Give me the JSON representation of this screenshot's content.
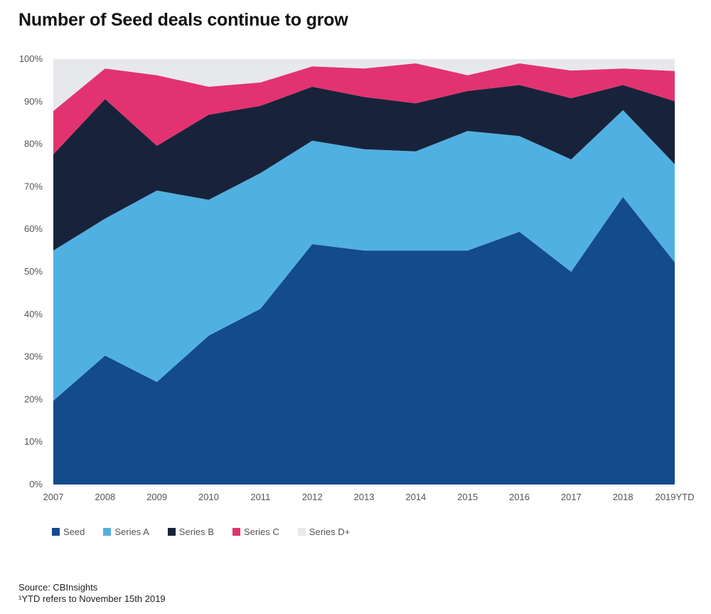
{
  "title": "Number of Seed deals continue to grow",
  "footnotes": {
    "source": "Source: CBInsights",
    "ytd_note": "¹YTD refers to November 15th 2019"
  },
  "chart_data": {
    "type": "area",
    "stacked": true,
    "normalized": true,
    "title": "Number of Seed deals continue to grow",
    "xlabel": "",
    "ylabel": "",
    "ylim": [
      0,
      100
    ],
    "yticks": [
      0,
      10,
      20,
      30,
      40,
      50,
      60,
      70,
      80,
      90,
      100
    ],
    "ytick_labels": [
      "0%",
      "10%",
      "20%",
      "30%",
      "40%",
      "50%",
      "60%",
      "70%",
      "80%",
      "90%",
      "100%"
    ],
    "categories": [
      "2007",
      "2008",
      "2009",
      "2010",
      "2011",
      "2012",
      "2013",
      "2014",
      "2015",
      "2016",
      "2017",
      "2018",
      "2019YTD"
    ],
    "grid": false,
    "legend_position": "bottom-left",
    "series": [
      {
        "name": "Seed",
        "color": "#134b8c",
        "values": [
          19.7,
          30.3,
          24.1,
          35.0,
          41.3,
          56.5,
          55.0,
          55.0,
          55.0,
          59.4,
          50.0,
          67.6,
          52.2
        ]
      },
      {
        "name": "Series A",
        "color": "#51b0e2",
        "values": [
          35.3,
          32.2,
          45.0,
          31.9,
          31.9,
          24.3,
          23.8,
          23.3,
          28.1,
          22.5,
          26.4,
          20.4,
          23.1
        ]
      },
      {
        "name": "Series B",
        "color": "#18233b",
        "values": [
          22.6,
          28.1,
          10.5,
          20.0,
          15.8,
          12.7,
          12.3,
          11.3,
          9.4,
          12.0,
          14.4,
          5.9,
          14.8
        ]
      },
      {
        "name": "Series C",
        "color": "#e23370",
        "values": [
          10.2,
          7.2,
          16.6,
          6.6,
          5.5,
          4.8,
          6.7,
          9.4,
          3.7,
          5.1,
          6.5,
          3.9,
          7.1
        ]
      },
      {
        "name": "Series D+",
        "color": "#e7e8ec",
        "values": [
          12.2,
          2.2,
          3.8,
          6.5,
          5.5,
          1.7,
          2.2,
          1.0,
          3.8,
          1.0,
          2.7,
          2.2,
          2.8
        ]
      }
    ]
  }
}
